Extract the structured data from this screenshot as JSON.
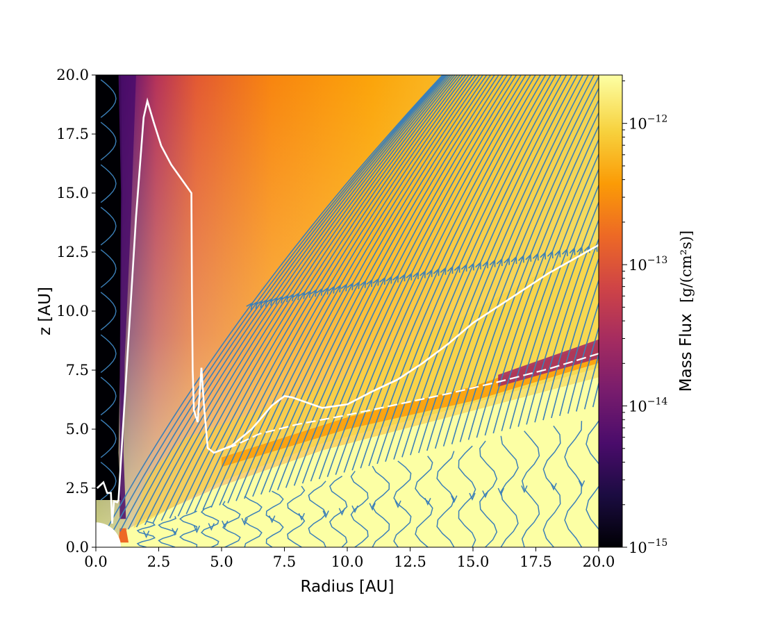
{
  "chart_data": {
    "type": "heatmap",
    "title": "",
    "xlabel": "Radius [AU]",
    "ylabel": "z [AU]",
    "xlim": [
      0,
      20
    ],
    "ylim": [
      0,
      20
    ],
    "x_ticks": [
      0,
      2.5,
      5,
      7.5,
      10,
      12.5,
      15,
      17.5,
      20
    ],
    "y_ticks": [
      0,
      2.5,
      5,
      7.5,
      10,
      12.5,
      15,
      17.5,
      20
    ],
    "x_tick_labels": [
      "0.0",
      "2.5",
      "5.0",
      "7.5",
      "10.0",
      "12.5",
      "15.0",
      "17.5",
      "20.0"
    ],
    "y_tick_labels": [
      "0.0",
      "2.5",
      "5.0",
      "7.5",
      "10.0",
      "12.5",
      "15.0",
      "17.5",
      "20.0"
    ],
    "colorbar": {
      "label_text": "Mass Flux",
      "label_units": "[g/(cm²s)]",
      "scale": "log",
      "range": [
        1e-15,
        2.2e-12
      ],
      "ticks": [
        {
          "value": 1e-15,
          "base": "10",
          "exp": "−15"
        },
        {
          "value": 1e-14,
          "base": "10",
          "exp": "−14"
        },
        {
          "value": 1e-13,
          "base": "10",
          "exp": "−13"
        },
        {
          "value": 1e-12,
          "base": "10",
          "exp": "−12"
        }
      ],
      "colormap": "inferno"
    },
    "grid": false,
    "overlays": {
      "streamline_color": "#3b7fb8",
      "contour_color": "#ffffff",
      "contour_inner": [
        [
          0.05,
          2.5
        ],
        [
          0.3,
          2.75
        ],
        [
          0.45,
          2.3
        ],
        [
          0.6,
          2.3
        ],
        [
          0.65,
          1.0
        ],
        [
          0.72,
          1.95
        ],
        [
          0.85,
          1.9
        ],
        [
          0.9,
          2.0
        ],
        [
          1.25,
          8
        ],
        [
          1.6,
          14
        ],
        [
          1.9,
          18.2
        ],
        [
          2.05,
          18.9
        ],
        [
          2.3,
          18
        ],
        [
          2.6,
          17
        ],
        [
          3.0,
          16.2
        ],
        [
          3.8,
          15.0
        ],
        [
          3.82,
          11
        ],
        [
          3.85,
          7.5
        ],
        [
          3.9,
          5.8
        ],
        [
          4.05,
          5.3
        ],
        [
          4.2,
          7.6
        ],
        [
          4.3,
          6.0
        ],
        [
          4.45,
          4.2
        ],
        [
          4.7,
          4.0
        ],
        [
          5.4,
          4.3
        ],
        [
          6.2,
          5.0
        ],
        [
          7.0,
          6.0
        ],
        [
          7.5,
          6.4
        ],
        [
          7.8,
          6.35
        ],
        [
          8.2,
          6.2
        ],
        [
          9.0,
          5.9
        ],
        [
          10.0,
          6.05
        ],
        [
          11.0,
          6.6
        ],
        [
          12.0,
          7.1
        ],
        [
          13.0,
          7.8
        ],
        [
          14.0,
          8.6
        ],
        [
          15.0,
          9.5
        ],
        [
          16.0,
          10.2
        ],
        [
          17.0,
          10.9
        ],
        [
          18.0,
          11.6
        ],
        [
          19.0,
          12.2
        ],
        [
          20.0,
          12.8
        ]
      ],
      "contour_disk": [
        [
          4.7,
          4.0
        ],
        [
          5.5,
          4.3
        ],
        [
          6.5,
          4.8
        ],
        [
          8.0,
          5.2
        ],
        [
          10.0,
          5.6
        ],
        [
          12.0,
          6.05
        ],
        [
          14.0,
          6.5
        ],
        [
          16.0,
          7.0
        ],
        [
          18.0,
          7.55
        ],
        [
          20.0,
          8.2
        ]
      ],
      "colormap_stops": [
        "#000004",
        "#1b0c41",
        "#4a0c6b",
        "#781c6d",
        "#a52c60",
        "#cf4446",
        "#ed6925",
        "#fb9b06",
        "#f7d13d",
        "#fcffa4"
      ]
    }
  }
}
